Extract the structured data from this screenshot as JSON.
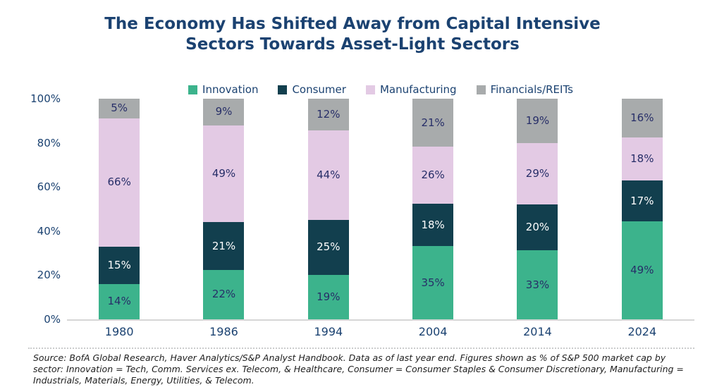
{
  "page": {
    "background": "#FFFFFF"
  },
  "header": {
    "title_line1": "The Economy Has Shifted Away from Capital Intensive",
    "title_line2": "Sectors Towards Asset-Light Sectors",
    "title_color": "#1B4271"
  },
  "chart_data": {
    "type": "bar",
    "stacked": true,
    "stack_unit": "percent_of_total",
    "title": "The Economy Has Shifted Away from Capital Intensive Sectors Towards Asset-Light Sectors",
    "categories": [
      "1980",
      "1986",
      "1994",
      "2004",
      "2014",
      "2024"
    ],
    "series": [
      {
        "name": "Innovation",
        "color": "#3CB38C",
        "label_color": "#272E68",
        "values": [
          14,
          22,
          19,
          35,
          33,
          49
        ]
      },
      {
        "name": "Consumer",
        "color": "#123F4E",
        "label_color": "#FFFFFF",
        "values": [
          15,
          21,
          25,
          18,
          20,
          17
        ]
      },
      {
        "name": "Manufacturing",
        "color": "#E3CAE4",
        "label_color": "#272E68",
        "values": [
          66,
          49,
          44,
          26,
          29,
          18
        ]
      },
      {
        "name": "Financials/REITs",
        "color": "#A8ABAC",
        "label_color": "#272E68",
        "values": [
          5,
          9,
          12,
          21,
          19,
          16
        ]
      }
    ],
    "value_suffix": "%",
    "data_labels": true,
    "ylim": [
      0,
      100
    ],
    "yticks": [
      0,
      20,
      40,
      60,
      80,
      100
    ],
    "ytick_labels": [
      "0%",
      "20%",
      "40%",
      "60%",
      "80%",
      "100%"
    ],
    "legend_position": "top",
    "grid": false,
    "axis_label_color": "#1B4271",
    "axis_line_color": "#D6D6D6"
  },
  "footer": {
    "source_note": "Source: BofA Global Research, Haver Analytics/S&P Analyst Handbook. Data as of last year end. Figures shown as % of S&P 500 market cap by sector: Innovation = Tech, Comm. Services ex. Telecom, & Healthcare, Consumer = Consumer Staples & Consumer Discretionary, Manufacturing = Industrials, Materials, Energy, Utilities, & Telecom."
  }
}
